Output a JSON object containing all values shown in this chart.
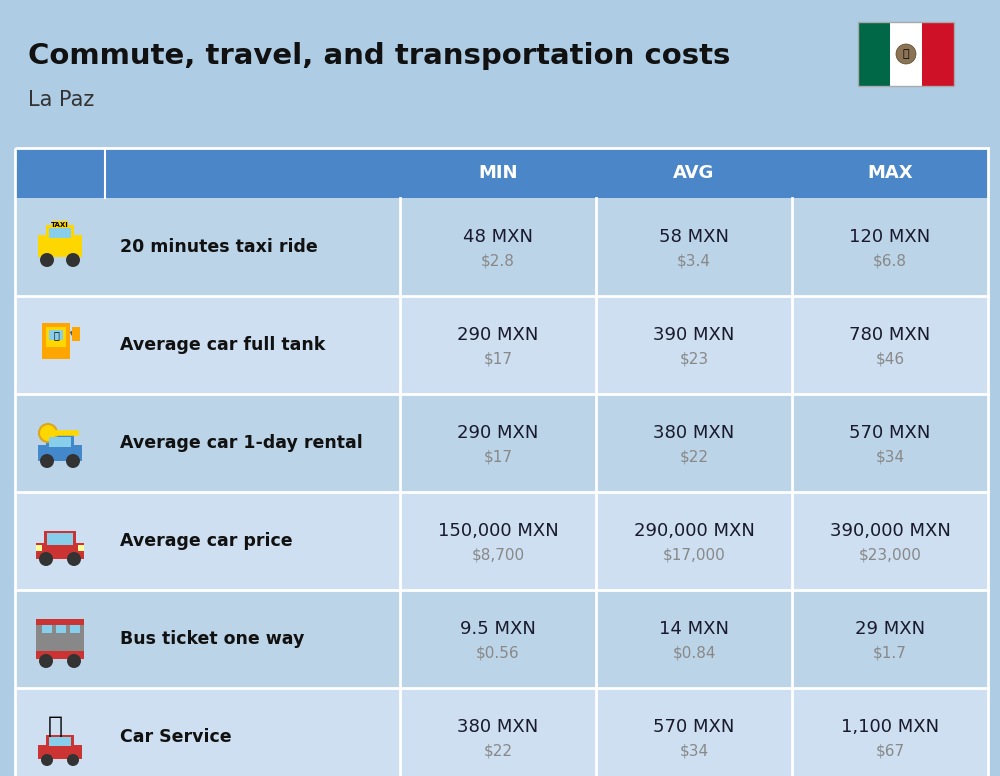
{
  "title": "Commute, travel, and transportation costs",
  "subtitle": "La Paz",
  "background_color": "#aecce4",
  "header_bg_color": "#4a86c8",
  "header_text_color": "#ffffff",
  "row_bg_even": "#bcd4e8",
  "row_bg_odd": "#cddff0",
  "col_header": [
    "MIN",
    "AVG",
    "MAX"
  ],
  "rows": [
    {
      "label": "20 minutes taxi ride",
      "min_mxn": "48 MXN",
      "min_usd": "$2.8",
      "avg_mxn": "58 MXN",
      "avg_usd": "$3.4",
      "max_mxn": "120 MXN",
      "max_usd": "$6.8"
    },
    {
      "label": "Average car full tank",
      "min_mxn": "290 MXN",
      "min_usd": "$17",
      "avg_mxn": "390 MXN",
      "avg_usd": "$23",
      "max_mxn": "780 MXN",
      "max_usd": "$46"
    },
    {
      "label": "Average car 1-day rental",
      "min_mxn": "290 MXN",
      "min_usd": "$17",
      "avg_mxn": "380 MXN",
      "avg_usd": "$22",
      "max_mxn": "570 MXN",
      "max_usd": "$34"
    },
    {
      "label": "Average car price",
      "min_mxn": "150,000 MXN",
      "min_usd": "$8,700",
      "avg_mxn": "290,000 MXN",
      "avg_usd": "$17,000",
      "max_mxn": "390,000 MXN",
      "max_usd": "$23,000"
    },
    {
      "label": "Bus ticket one way",
      "min_mxn": "9.5 MXN",
      "min_usd": "$0.56",
      "avg_mxn": "14 MXN",
      "avg_usd": "$0.84",
      "max_mxn": "29 MXN",
      "max_usd": "$1.7"
    },
    {
      "label": "Car Service",
      "min_mxn": "380 MXN",
      "min_usd": "$22",
      "avg_mxn": "570 MXN",
      "avg_usd": "$34",
      "max_mxn": "1,100 MXN",
      "max_usd": "$67"
    }
  ],
  "title_fontsize": 21,
  "subtitle_fontsize": 15,
  "header_fontsize": 13,
  "label_fontsize": 12.5,
  "value_fontsize": 13,
  "usd_fontsize": 11
}
